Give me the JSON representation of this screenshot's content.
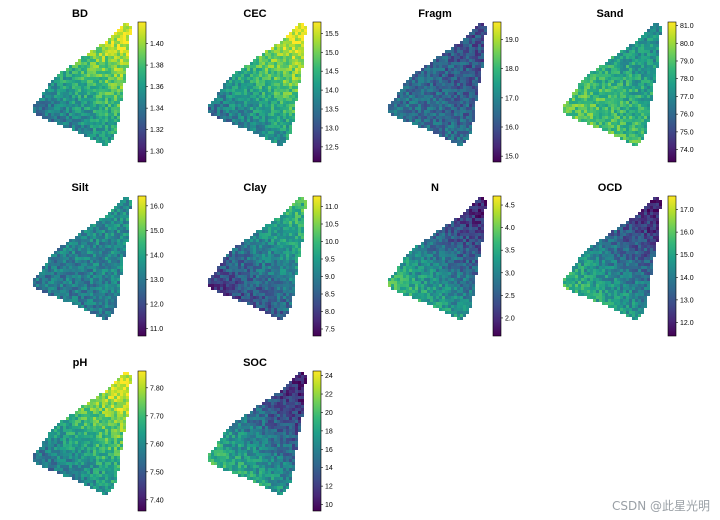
{
  "chart_data": [
    {
      "type": "heatmap",
      "title": "BD",
      "palette": "viridis",
      "colorbar_ticks": [
        "1.40",
        "1.38",
        "1.36",
        "1.34",
        "1.32",
        "1.30"
      ],
      "range": [
        1.29,
        1.42
      ],
      "trend": "high_north"
    },
    {
      "type": "heatmap",
      "title": "CEC",
      "palette": "viridis",
      "colorbar_ticks": [
        "15.5",
        "15.0",
        "14.5",
        "14.0",
        "13.5",
        "13.0",
        "12.5"
      ],
      "range": [
        12.1,
        15.8
      ],
      "trend": "high_north"
    },
    {
      "type": "heatmap",
      "title": "Fragm",
      "palette": "viridis",
      "colorbar_ticks": [
        "19.0",
        "18.0",
        "17.0",
        "16.0",
        "15.0"
      ],
      "range": [
        14.8,
        19.6
      ],
      "trend": "mixed_low"
    },
    {
      "type": "heatmap",
      "title": "Sand",
      "palette": "viridis",
      "colorbar_ticks": [
        "81.0",
        "80.0",
        "79.0",
        "78.0",
        "77.0",
        "76.0",
        "75.0",
        "74.0"
      ],
      "range": [
        73.3,
        81.2
      ],
      "trend": "high_south"
    },
    {
      "type": "heatmap",
      "title": "Silt",
      "palette": "viridis",
      "colorbar_ticks": [
        "16.0",
        "15.0",
        "14.0",
        "13.0",
        "12.0",
        "11.0"
      ],
      "range": [
        10.7,
        16.4
      ],
      "trend": "mid_low"
    },
    {
      "type": "heatmap",
      "title": "Clay",
      "palette": "viridis",
      "colorbar_ticks": [
        "11.0",
        "10.5",
        "10.0",
        "9.5",
        "9.0",
        "8.5",
        "8.0",
        "7.5"
      ],
      "range": [
        7.3,
        11.3
      ],
      "trend": "low_south"
    },
    {
      "type": "heatmap",
      "title": "N",
      "palette": "viridis",
      "colorbar_ticks": [
        "4.5",
        "4.0",
        "3.5",
        "3.0",
        "2.5",
        "2.0"
      ],
      "range": [
        1.6,
        4.7
      ],
      "trend": "low_north"
    },
    {
      "type": "heatmap",
      "title": "OCD",
      "palette": "viridis",
      "colorbar_ticks": [
        "17.0",
        "16.0",
        "15.0",
        "14.0",
        "13.0",
        "12.0"
      ],
      "range": [
        11.4,
        17.6
      ],
      "trend": "low_north"
    },
    {
      "type": "heatmap",
      "title": "pH",
      "palette": "viridis",
      "colorbar_ticks": [
        "7.80",
        "7.70",
        "7.60",
        "7.50",
        "7.40"
      ],
      "range": [
        7.36,
        7.86
      ],
      "trend": "high_north"
    },
    {
      "type": "heatmap",
      "title": "SOC",
      "palette": "viridis",
      "colorbar_ticks": [
        "24",
        "22",
        "20",
        "18",
        "16",
        "14",
        "12",
        "10"
      ],
      "range": [
        9.3,
        24.5
      ],
      "trend": "low_north"
    }
  ],
  "watermark": "CSDN @此星光明"
}
